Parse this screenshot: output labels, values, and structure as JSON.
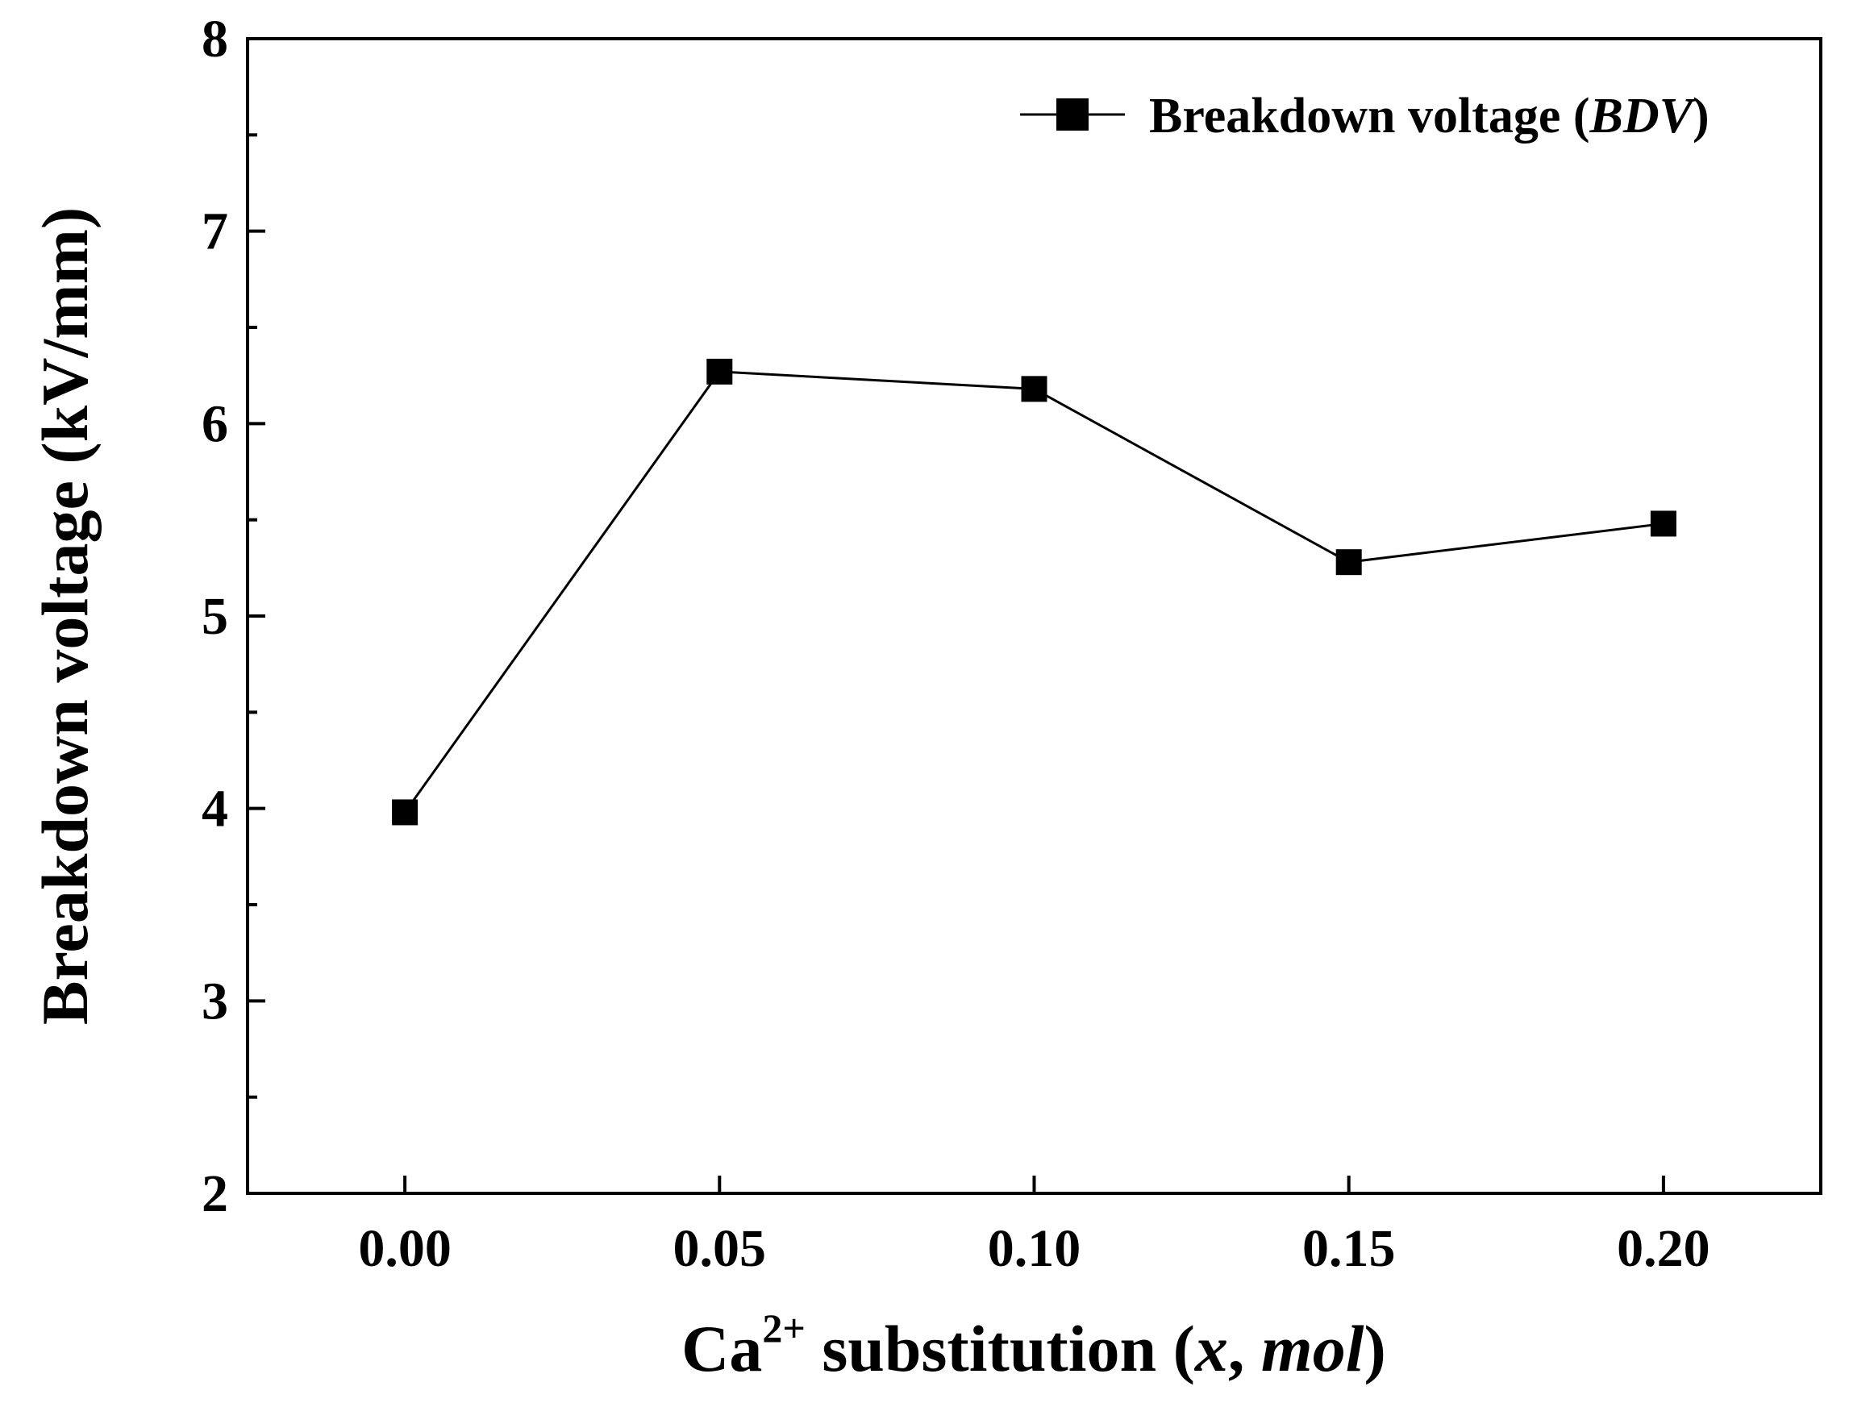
{
  "chart_data": {
    "type": "line",
    "title": "",
    "xlabel": {
      "prefix": "Ca",
      "superscript": "2+",
      "middle": " substitution (",
      "var_x": "x",
      "comma": ", ",
      "var_mol": "mol",
      "suffix": ")"
    },
    "ylabel": "Breakdown voltage (kV/mm)",
    "xlim": [
      -0.025,
      0.225
    ],
    "ylim": [
      2,
      8
    ],
    "x_ticks": [
      0.0,
      0.05,
      0.1,
      0.15,
      0.2
    ],
    "x_tick_labels": [
      "0.00",
      "0.05",
      "0.10",
      "0.15",
      "0.20"
    ],
    "y_ticks": [
      2,
      3,
      4,
      5,
      6,
      7,
      8
    ],
    "y_tick_labels": [
      "2",
      "3",
      "4",
      "5",
      "6",
      "7",
      "8"
    ],
    "y_minor_ticks": [
      2.5,
      3.5,
      4.5,
      5.5,
      6.5,
      7.5
    ],
    "grid": false,
    "legend_position": "top-right",
    "series": [
      {
        "name": "Breakdown voltage",
        "name_abbrev": "BDV",
        "marker": "square",
        "color": "#000000",
        "x": [
          0.0,
          0.05,
          0.1,
          0.15,
          0.2
        ],
        "values": [
          3.98,
          6.27,
          6.18,
          5.28,
          5.48
        ]
      }
    ]
  }
}
